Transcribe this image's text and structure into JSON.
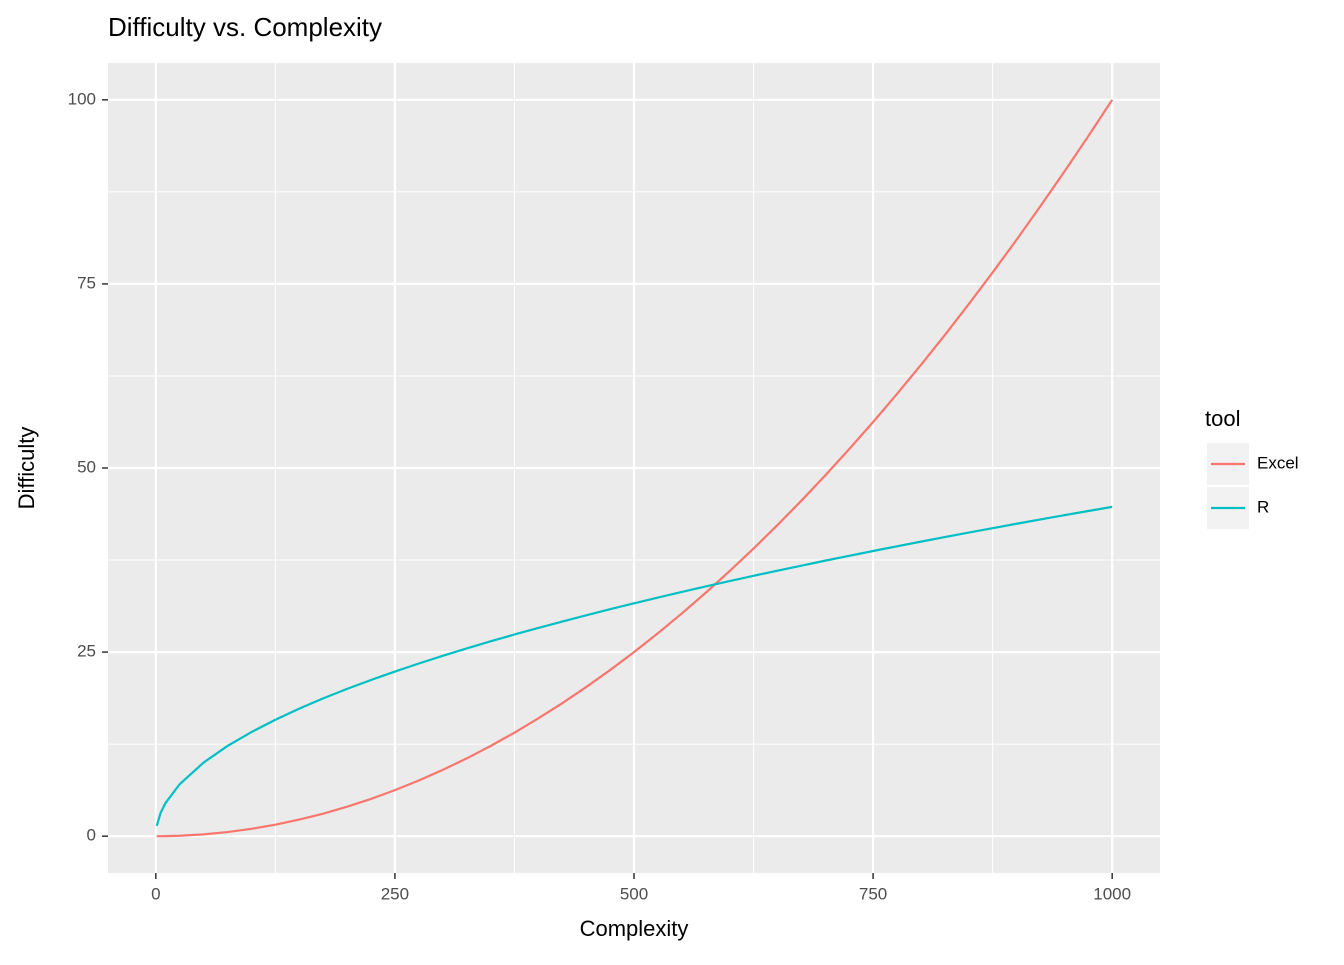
{
  "chart_data": {
    "type": "line",
    "title": "Difficulty vs. Complexity",
    "x_label": "Complexity",
    "y_label": "Difficulty",
    "legend_title": "tool",
    "x": [
      1,
      5,
      10,
      25,
      50,
      75,
      100,
      125,
      150,
      175,
      200,
      225,
      250,
      275,
      300,
      325,
      350,
      375,
      400,
      425,
      450,
      475,
      500,
      525,
      550,
      575,
      600,
      625,
      650,
      675,
      700,
      725,
      750,
      775,
      800,
      825,
      850,
      875,
      900,
      925,
      950,
      975,
      1000
    ],
    "series": [
      {
        "name": "Excel",
        "color": "#F8766D",
        "values": [
          0,
          0,
          0.01,
          0.06,
          0.25,
          0.56,
          1,
          1.56,
          2.25,
          3.06,
          4,
          5.06,
          6.25,
          7.56,
          9,
          10.56,
          12.25,
          14.06,
          16,
          18.06,
          20.25,
          22.56,
          25,
          27.56,
          30.25,
          33.06,
          36,
          39.06,
          42.25,
          45.56,
          49,
          52.56,
          56.25,
          60.06,
          64,
          68.06,
          72.25,
          76.56,
          81,
          85.56,
          90.25,
          95.06,
          100
        ]
      },
      {
        "name": "R",
        "color": "#00BFC4",
        "values": [
          1.41,
          3.16,
          4.47,
          7.07,
          10,
          12.25,
          14.14,
          15.81,
          17.32,
          18.71,
          20,
          21.21,
          22.36,
          23.45,
          24.49,
          25.5,
          26.46,
          27.39,
          28.28,
          29.15,
          30,
          30.82,
          31.62,
          32.4,
          33.17,
          33.91,
          34.64,
          35.36,
          36.06,
          36.74,
          37.42,
          38.08,
          38.73,
          39.37,
          40,
          40.62,
          41.23,
          41.83,
          42.43,
          43.01,
          43.59,
          44.16,
          44.72
        ]
      }
    ],
    "xlim": [
      -50,
      1050
    ],
    "xticks": [
      0,
      250,
      500,
      750,
      1000
    ],
    "ylim": [
      -5,
      105
    ],
    "yticks": [
      0,
      25,
      50,
      75,
      100
    ],
    "grid": true,
    "minor_grid": true,
    "legend": "right"
  }
}
